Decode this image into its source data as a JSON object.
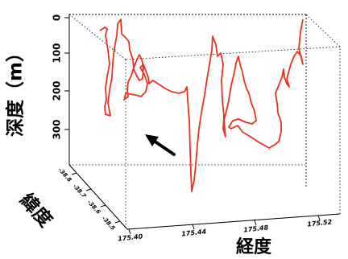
{
  "chart_data": {
    "type": "line-3d",
    "title": "",
    "axes": {
      "z": {
        "label": "深度（m）",
        "ticks": [
          "0",
          "100",
          "200",
          "300"
        ],
        "range": [
          0,
          400
        ],
        "inverted": true
      },
      "x": {
        "label": "経度",
        "ticks": [
          "175.40",
          "175.44",
          "175.48",
          "175.52"
        ]
      },
      "y": {
        "label": "緯度",
        "ticks": [
          "-38.8",
          "-38.7",
          "-38.6",
          "-38.5"
        ]
      }
    },
    "series": [
      {
        "color": "#e8321f",
        "projected_track": [
          [
            124,
            38
          ],
          [
            130,
            34
          ],
          [
            133,
            36
          ],
          [
            131,
            44
          ],
          [
            134,
            62
          ],
          [
            136,
            80
          ],
          [
            133,
            95
          ],
          [
            131,
            110
          ],
          [
            132,
            124
          ],
          [
            130,
            133
          ],
          [
            131,
            142
          ],
          [
            137,
            144
          ],
          [
            134,
            128
          ],
          [
            136,
            112
          ],
          [
            139,
            96
          ],
          [
            140,
            78
          ],
          [
            142,
            60
          ],
          [
            145,
            44
          ],
          [
            146,
            30
          ],
          [
            150,
            24
          ],
          [
            151,
            42
          ],
          [
            157,
            48
          ],
          [
            160,
            52
          ],
          [
            161,
            62
          ],
          [
            165,
            74
          ],
          [
            166,
            86
          ],
          [
            170,
            95
          ],
          [
            173,
            100
          ],
          [
            177,
            98
          ],
          [
            178,
            84
          ],
          [
            176,
            74
          ],
          [
            173,
            68
          ],
          [
            170,
            74
          ],
          [
            166,
            84
          ],
          [
            163,
            94
          ],
          [
            159,
            102
          ],
          [
            158,
            112
          ],
          [
            159,
            120
          ],
          [
            154,
            124
          ],
          [
            156,
            116
          ],
          [
            168,
            118
          ],
          [
            175,
            120
          ],
          [
            181,
            114
          ],
          [
            183,
            104
          ],
          [
            179,
            92
          ],
          [
            174,
            84
          ],
          [
            178,
            80
          ],
          [
            181,
            88
          ],
          [
            184,
            96
          ],
          [
            185,
            104
          ],
          [
            190,
            100
          ],
          [
            199,
            106
          ],
          [
            205,
            110
          ],
          [
            213,
            114
          ],
          [
            222,
            116
          ],
          [
            229,
            114
          ],
          [
            232,
            108
          ],
          [
            233,
            124
          ],
          [
            235,
            150
          ],
          [
            236,
            185
          ],
          [
            237,
            215
          ],
          [
            238,
            238
          ],
          [
            241,
            224
          ],
          [
            243,
            205
          ],
          [
            245,
            180
          ],
          [
            247,
            160
          ],
          [
            250,
            140
          ],
          [
            254,
            118
          ],
          [
            257,
            98
          ],
          [
            260,
            80
          ],
          [
            263,
            62
          ],
          [
            264,
            45
          ],
          [
            268,
            56
          ],
          [
            270,
            70
          ],
          [
            274,
            66
          ],
          [
            277,
            80
          ],
          [
            275,
            100
          ],
          [
            276,
            124
          ],
          [
            278,
            145
          ],
          [
            277,
            160
          ],
          [
            280,
            170
          ],
          [
            278,
            150
          ],
          [
            283,
            130
          ],
          [
            287,
            106
          ],
          [
            291,
            90
          ],
          [
            293,
            78
          ],
          [
            296,
            70
          ],
          [
            298,
            80
          ],
          [
            301,
            90
          ],
          [
            303,
            100
          ],
          [
            306,
            110
          ],
          [
            309,
            116
          ],
          [
            312,
            128
          ],
          [
            316,
            138
          ],
          [
            318,
            150
          ],
          [
            313,
            154
          ],
          [
            305,
            152
          ],
          [
            296,
            148
          ],
          [
            289,
            150
          ],
          [
            284,
            158
          ],
          [
            287,
            160
          ],
          [
            295,
            156
          ],
          [
            301,
            164
          ],
          [
            311,
            170
          ],
          [
            320,
            176
          ],
          [
            327,
            180
          ],
          [
            334,
            184
          ],
          [
            341,
            180
          ],
          [
            346,
            176
          ],
          [
            349,
            164
          ],
          [
            349,
            152
          ],
          [
            345,
            140
          ],
          [
            344,
            128
          ],
          [
            342,
            116
          ],
          [
            346,
            106
          ],
          [
            350,
            96
          ],
          [
            352,
            86
          ],
          [
            353,
            96
          ],
          [
            356,
            104
          ],
          [
            359,
            108
          ],
          [
            356,
            98
          ],
          [
            361,
            80
          ],
          [
            365,
            70
          ],
          [
            369,
            64
          ],
          [
            374,
            70
          ],
          [
            376,
            80
          ],
          [
            371,
            60
          ],
          [
            373,
            40
          ],
          [
            376,
            24
          ]
        ]
      }
    ],
    "annotations": [
      {
        "type": "arrow",
        "color": "#000000"
      }
    ],
    "grid": false,
    "legend": "none"
  }
}
